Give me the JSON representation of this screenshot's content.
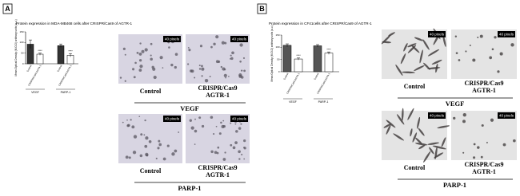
{
  "chart_data": [
    {
      "type": "bar",
      "title": "Protein expression in MDA-MB468 cells after CRISPR/Cas9 of AGTR-1",
      "ylabel": "Mean Optical Density (M.O.D) arbitrary units (a.u.)",
      "categories": [
        "VEGF",
        "PARP-1"
      ],
      "series": [
        {
          "name": "Control",
          "color": "#333333",
          "values": [
            92,
            85
          ],
          "errors": [
            20,
            8
          ]
        },
        {
          "name": "CRISPR/Cas9 AGTR-1",
          "color": "#ffffff",
          "values": [
            45,
            40
          ],
          "errors": [
            5,
            8
          ],
          "significance": [
            "****",
            "****"
          ]
        }
      ],
      "ylim": [
        0,
        150
      ],
      "yticks": [
        0,
        50,
        100,
        150
      ]
    },
    {
      "type": "bar",
      "title": "Protein expression in CF41cells after CRISPR/Cas9 of AGTR-1",
      "ylabel": "Mean Optical Density (M.O.D) arbitrary units (a.u.)",
      "categories": [
        "VEGF",
        "PARP-1"
      ],
      "series": [
        {
          "name": "Control",
          "color": "#555555",
          "values": [
            108,
            106
          ],
          "errors": [
            6,
            5
          ]
        },
        {
          "name": "CRISPR/Cas9 AGTR-1",
          "color": "#ffffff",
          "values": [
            52,
            76
          ],
          "errors": [
            4,
            5
          ],
          "significance": [
            "****",
            "****"
          ]
        }
      ],
      "ylim": [
        0,
        150
      ],
      "yticks": [
        0,
        50,
        100,
        150
      ]
    }
  ],
  "panels": [
    {
      "label": "A",
      "rows": [
        {
          "images": [
            {
              "caption": "Control",
              "scale_bar": "40 pixels"
            },
            {
              "caption": [
                "CRISPR/Cas9",
                "AGTR-1"
              ],
              "scale_bar": "40 pixels"
            }
          ],
          "group": "VEGF"
        },
        {
          "images": [
            {
              "caption": "Control",
              "scale_bar": "40 pixels"
            },
            {
              "caption": [
                "CRISPR/Cas9",
                "AGTR-1"
              ],
              "scale_bar": "40 pixels"
            }
          ],
          "group": "PARP-1"
        }
      ]
    },
    {
      "label": "B",
      "rows": [
        {
          "images": [
            {
              "caption": "Control",
              "scale_bar": "40 pixels"
            },
            {
              "caption": [
                "CRISPR/Cas9",
                "AGTR-1"
              ],
              "scale_bar": "40 pixels"
            }
          ],
          "group": "VEGF"
        },
        {
          "images": [
            {
              "caption": "Control",
              "scale_bar": "40 pixels"
            },
            {
              "caption": [
                "CRISPR/Cas9",
                "AGTR-1"
              ],
              "scale_bar": "40 pixels"
            }
          ],
          "group": "PARP-1"
        }
      ]
    }
  ]
}
